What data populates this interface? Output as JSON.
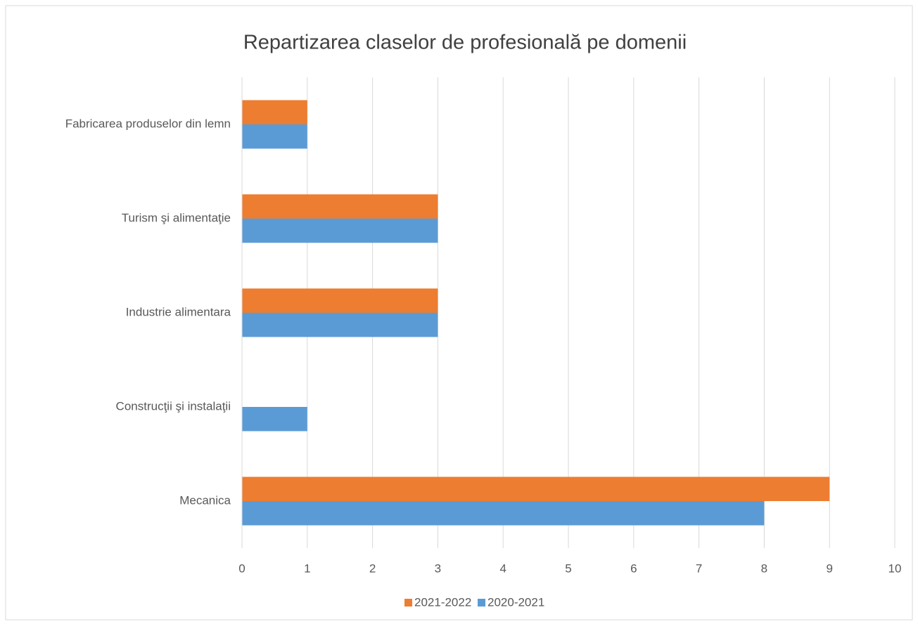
{
  "chart_data": {
    "type": "hbar",
    "title": "Repartizarea claselor de profesională pe domenii",
    "categories": [
      "Mecanica",
      "Construcţii şi instalaţii",
      "Industrie alimentara",
      "Turism şi alimentaţie",
      "Fabricarea produselor din lemn"
    ],
    "series": [
      {
        "name": "2020-2021",
        "color": "#5b9bd5",
        "values": [
          8,
          1,
          3,
          3,
          1
        ]
      },
      {
        "name": "2021-2022",
        "color": "#ed7d31",
        "values": [
          9,
          0,
          3,
          3,
          1
        ]
      }
    ],
    "xlim": [
      0,
      10
    ],
    "xticks": [
      0,
      1,
      2,
      3,
      4,
      5,
      6,
      7,
      8,
      9,
      10
    ],
    "grid": true,
    "legend": "bottom"
  }
}
